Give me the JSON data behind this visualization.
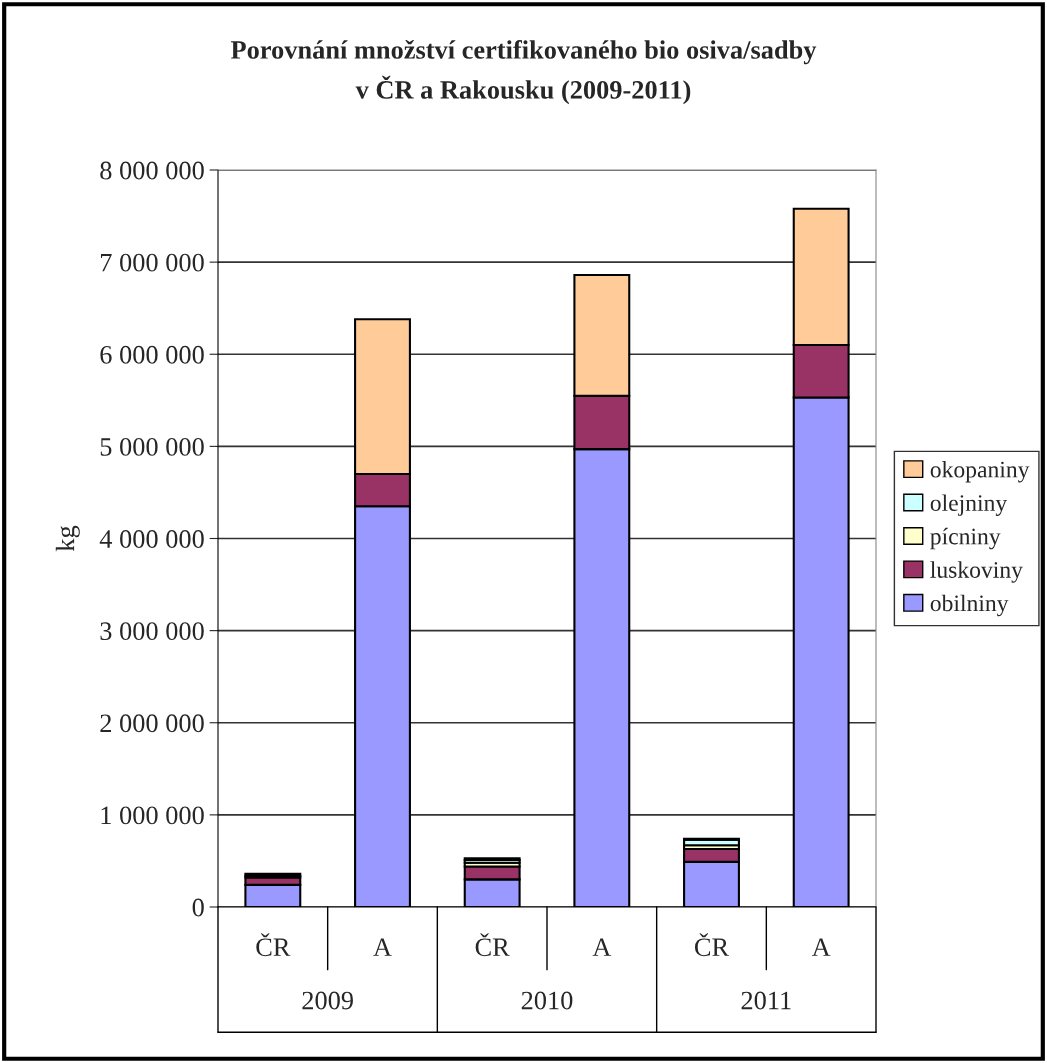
{
  "chart_data": {
    "type": "bar",
    "title": "Porovnání množství certifikovaného bio osiva/sadby\nv ČR a Rakousku (2009-2011)",
    "ylabel": "kg",
    "categories": [
      "ČR",
      "A",
      "ČR",
      "A",
      "ČR",
      "A"
    ],
    "annotations": [
      "2009",
      "2010",
      "2011"
    ],
    "stacked": true,
    "series": [
      {
        "name": "obilniny",
        "color": "#9999ff",
        "values": [
          240000,
          4350000,
          300000,
          4970000,
          490000,
          5530000
        ]
      },
      {
        "name": "luskoviny",
        "color": "#993366",
        "values": [
          80000,
          350000,
          140000,
          580000,
          140000,
          570000
        ]
      },
      {
        "name": "pícniny",
        "color": "#ffffcc",
        "values": [
          20000,
          0,
          40000,
          0,
          40000,
          0
        ]
      },
      {
        "name": "olejniny",
        "color": "#ccffff",
        "values": [
          null,
          0,
          30000,
          0,
          60000,
          0
        ]
      },
      {
        "name": "okopaniny",
        "color": "#ffcc99",
        "values": [
          20000,
          1680000,
          20000,
          1310000,
          10000,
          1480000
        ]
      }
    ],
    "ylim": [
      0,
      8000000
    ],
    "yticks": [
      {
        "value": 0,
        "label": "0"
      },
      {
        "value": 1000000,
        "label": "1 000 000"
      },
      {
        "value": 2000000,
        "label": "2 000 000"
      },
      {
        "value": 3000000,
        "label": "3 000 000"
      },
      {
        "value": 4000000,
        "label": "4 000 000"
      },
      {
        "value": 5000000,
        "label": "5 000 000"
      },
      {
        "value": 6000000,
        "label": "6 000 000"
      },
      {
        "value": 7000000,
        "label": "7 000 000"
      },
      {
        "value": 8000000,
        "label": "8 000 000"
      }
    ],
    "grid": "y",
    "legend": "right"
  }
}
